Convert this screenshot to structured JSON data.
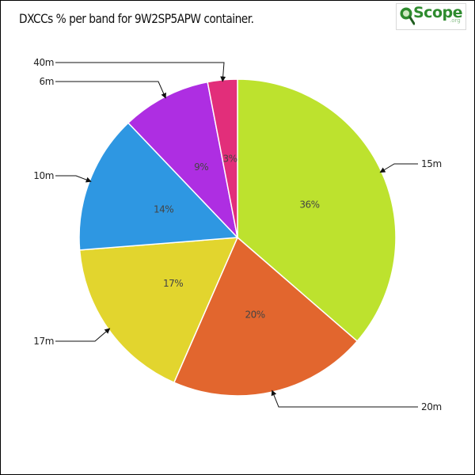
{
  "colors": {
    "15m": "#bde22e",
    "20m": "#e2662e",
    "17m": "#e2d52e",
    "10m": "#2e97e2",
    "6m": "#ae2ee2",
    "40m": "#e22e7a"
  },
  "logo": {
    "text": "Scope",
    "suffix": ".org"
  },
  "chart_data": {
    "type": "pie",
    "title": "DXCCs % per band for 9W2SP5APW container.",
    "start_angle_deg": 90,
    "direction": "clockwise",
    "slices": [
      {
        "label": "15m",
        "value": 36,
        "value_label": "36%",
        "color": "#bde22e"
      },
      {
        "label": "20m",
        "value": 20,
        "value_label": "20%",
        "color": "#e2662e"
      },
      {
        "label": "17m",
        "value": 17,
        "value_label": "17%",
        "color": "#e2d52e"
      },
      {
        "label": "10m",
        "value": 14,
        "value_label": "14%",
        "color": "#2e97e2"
      },
      {
        "label": "6m",
        "value": 9,
        "value_label": "9%",
        "color": "#ae2ee2"
      },
      {
        "label": "40m",
        "value": 3,
        "value_label": "3%",
        "color": "#e22e7a"
      }
    ]
  }
}
